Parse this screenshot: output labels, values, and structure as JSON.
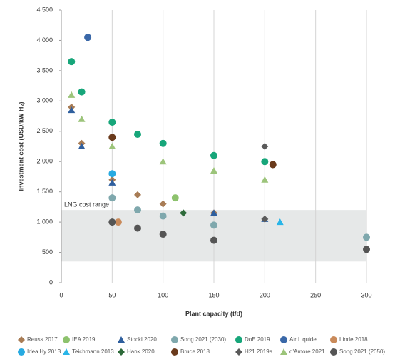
{
  "chart_data": {
    "type": "scatter",
    "xlabel": "Plant capacity (t/d)",
    "ylabel": "Investment cost (USD/kW H₂)",
    "xlim": [
      0,
      300
    ],
    "xticks": [
      0,
      50,
      100,
      150,
      200,
      250,
      300
    ],
    "ylim": [
      0,
      4500
    ],
    "yticks": [
      0,
      500,
      {
        "value": 1000,
        "label": "1 000"
      },
      {
        "value": 1500,
        "label": "1 500"
      },
      {
        "value": 2000,
        "label": "2 000"
      },
      {
        "value": 2500,
        "label": "2 500"
      },
      {
        "value": 3000,
        "label": "3 000"
      },
      {
        "value": 3500,
        "label": "3 500"
      },
      {
        "value": 4000,
        "label": "4 000"
      },
      {
        "value": 4500,
        "label": "4 500"
      }
    ],
    "grid": true,
    "band": {
      "label": "LNG cost range",
      "range": [
        350,
        1200
      ],
      "color": "#e6e8e8"
    },
    "series": [
      {
        "name": "Reuss 2017",
        "marker": "diamond",
        "color": "#a87c55",
        "x": [
          10,
          20,
          50,
          75,
          100,
          150
        ],
        "values": [
          2900,
          2300,
          1700,
          1450,
          1300,
          1150
        ]
      },
      {
        "name": "IEA 2019",
        "marker": "circle",
        "color": "#8dc26d",
        "x": [
          112
        ],
        "values": [
          1400
        ]
      },
      {
        "name": "Stockl 2020",
        "marker": "triangle",
        "color": "#2f5f9e",
        "x": [
          10,
          20,
          50,
          150,
          200
        ],
        "values": [
          2850,
          2250,
          1650,
          1150,
          1050
        ]
      },
      {
        "name": "Song 2021 (2030)",
        "marker": "circle",
        "color": "#7fa8ad",
        "x": [
          50,
          75,
          100,
          150,
          300
        ],
        "values": [
          1400,
          1200,
          1100,
          950,
          750
        ]
      },
      {
        "name": "DoE 2019",
        "marker": "circle",
        "color": "#17a67a",
        "x": [
          10,
          20,
          50,
          75,
          100,
          150,
          200
        ],
        "values": [
          3650,
          3150,
          2650,
          2450,
          2300,
          2100,
          2000
        ]
      },
      {
        "name": "Air Liquide",
        "marker": "circle",
        "color": "#3a68a8",
        "x": [
          26
        ],
        "values": [
          4050
        ]
      },
      {
        "name": "Linde 2018",
        "marker": "circle",
        "color": "#c98a5a",
        "x": [
          56
        ],
        "values": [
          1000
        ]
      },
      {
        "name": "IdealHy 2013",
        "marker": "circle",
        "color": "#27aae1",
        "x": [
          50
        ],
        "values": [
          1800
        ]
      },
      {
        "name": "Teichmann 2013",
        "marker": "triangle",
        "color": "#29b5e8",
        "x": [
          215
        ],
        "values": [
          1000
        ]
      },
      {
        "name": "Hank 2020",
        "marker": "diamond",
        "color": "#2e6a3a",
        "x": [
          120
        ],
        "values": [
          1150
        ]
      },
      {
        "name": "Bruce 2018",
        "marker": "circle",
        "color": "#6a3a1c",
        "x": [
          50,
          208
        ],
        "values": [
          2400,
          1950
        ]
      },
      {
        "name": "H21 2019a",
        "marker": "diamond",
        "color": "#5a5a5a",
        "x": [
          200,
          200
        ],
        "values": [
          2250,
          1050
        ]
      },
      {
        "name": "d'Amore 2021",
        "marker": "triangle",
        "color": "#9cc47a",
        "x": [
          10,
          20,
          50,
          100,
          150,
          200
        ],
        "values": [
          3100,
          2700,
          2250,
          2000,
          1850,
          1700
        ]
      },
      {
        "name": "Song 2021 (2050)",
        "marker": "circle",
        "color": "#555555",
        "x": [
          50,
          75,
          100,
          150,
          300
        ],
        "values": [
          1000,
          900,
          800,
          700,
          550
        ]
      }
    ]
  }
}
